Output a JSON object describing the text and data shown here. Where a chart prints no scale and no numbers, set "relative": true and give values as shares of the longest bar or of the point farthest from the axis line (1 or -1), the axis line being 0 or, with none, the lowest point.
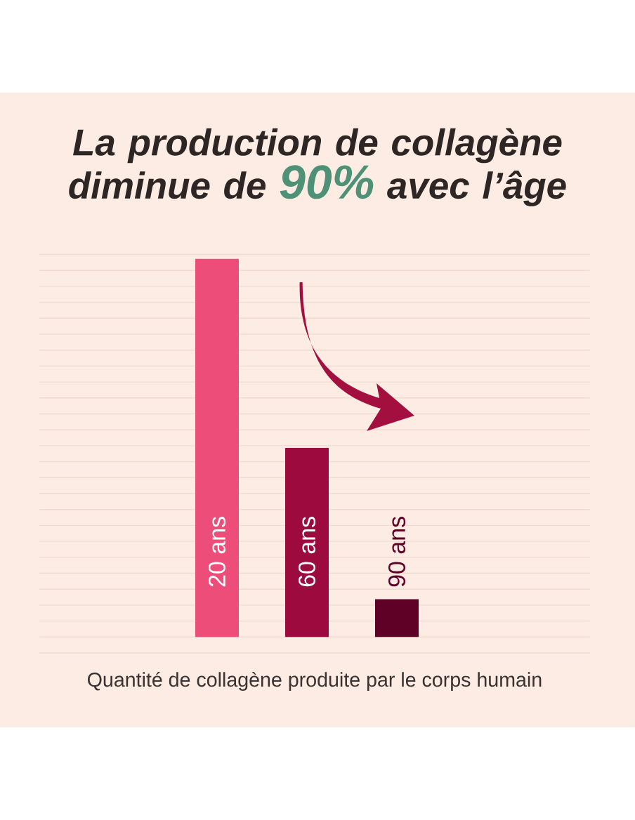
{
  "chart_data": {
    "type": "bar",
    "title": "La production de collagène diminue de **90%** avec l’âge",
    "xlabel": "Quantité de collagène produite par le corps humain",
    "categories": [
      "20 ans",
      "60 ans",
      "90 ans"
    ],
    "values": [
      1,
      0.5,
      0.1
    ],
    "colors": [
      "#ec4d79",
      "#9c0a3e",
      "#5f0027"
    ],
    "relative": true,
    "grid": "y"
  }
}
